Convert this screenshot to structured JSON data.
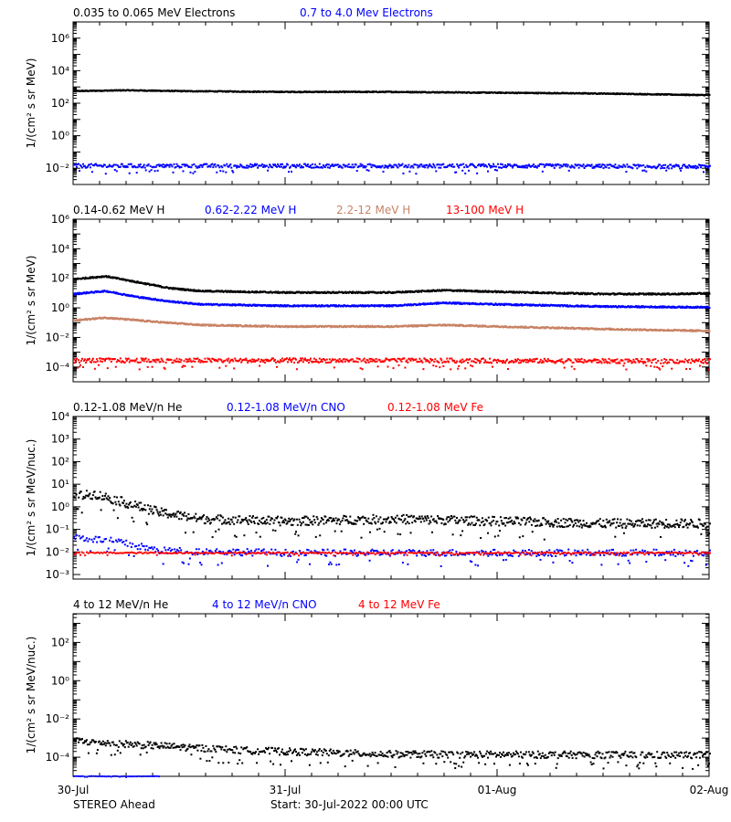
{
  "colors": {
    "black": "#000000",
    "blue": "#0000ff",
    "tan": "#c88264",
    "red": "#ff0000"
  },
  "footer": {
    "spacecraft": "STEREO Ahead",
    "start": "Start: 30-Jul-2022 00:00 UTC"
  },
  "x_axis": {
    "ticks": [
      "30-Jul",
      "31-Jul",
      "01-Aug",
      "02-Aug"
    ],
    "range_days": [
      0,
      3
    ]
  },
  "chart_data": [
    {
      "type": "scatter",
      "ylabel": "1/(cm² s sr MeV)",
      "yscale": "log",
      "ylim_exp": [
        -3,
        7
      ],
      "ytick_labels": [
        "10⁻²",
        "10⁰",
        "10²",
        "10⁴",
        "10⁶"
      ],
      "ytick_exps": [
        -2,
        0,
        2,
        4,
        6
      ],
      "legend": [
        {
          "label": "0.035 to 0.065 MeV Electrons",
          "color": "#000000"
        },
        {
          "label": "0.7 to 4.0 Mev Electrons",
          "color": "#0000ff"
        }
      ],
      "series": [
        {
          "name": "0.035 to 0.065 MeV Electrons",
          "color": "#000000",
          "points": [
            [
              0,
              2.8
            ],
            [
              0.25,
              2.85
            ],
            [
              0.5,
              2.8
            ],
            [
              1,
              2.75
            ],
            [
              1.5,
              2.75
            ],
            [
              2,
              2.7
            ],
            [
              2.5,
              2.65
            ],
            [
              3,
              2.55
            ]
          ],
          "spread": 0.03,
          "density": 1400,
          "mode": "line"
        },
        {
          "name": "0.7 to 4.0 Mev Electrons",
          "color": "#0000ff",
          "points": [
            [
              0,
              -1.8
            ],
            [
              1,
              -1.8
            ],
            [
              2,
              -1.8
            ],
            [
              3,
              -1.85
            ]
          ],
          "spread": 0.12,
          "density": 700,
          "mode": "dots"
        }
      ]
    },
    {
      "type": "scatter",
      "ylabel": "1/(cm² s sr MeV)",
      "yscale": "log",
      "ylim_exp": [
        -5,
        6
      ],
      "ytick_labels": [
        "10⁻⁴",
        "10⁻²",
        "10⁰",
        "10²",
        "10⁴",
        "10⁶"
      ],
      "ytick_exps": [
        -4,
        -2,
        0,
        2,
        4,
        6
      ],
      "legend": [
        {
          "label": "0.14-0.62 MeV H",
          "color": "#000000"
        },
        {
          "label": "0.62-2.22 MeV H",
          "color": "#0000ff"
        },
        {
          "label": "2.2-12 MeV H",
          "color": "#c88264"
        },
        {
          "label": "13-100 MeV H",
          "color": "#ff0000"
        }
      ],
      "series": [
        {
          "name": "0.14-0.62 MeV H",
          "color": "#000000",
          "points": [
            [
              0,
              2.0
            ],
            [
              0.15,
              2.2
            ],
            [
              0.3,
              1.8
            ],
            [
              0.45,
              1.4
            ],
            [
              0.6,
              1.2
            ],
            [
              1.0,
              1.1
            ],
            [
              1.5,
              1.1
            ],
            [
              1.75,
              1.25
            ],
            [
              2.0,
              1.15
            ],
            [
              2.5,
              1.0
            ],
            [
              2.85,
              1.0
            ],
            [
              3,
              1.05
            ]
          ],
          "spread": 0.05,
          "density": 1400,
          "mode": "line"
        },
        {
          "name": "0.62-2.22 MeV H",
          "color": "#0000ff",
          "points": [
            [
              0,
              1.0
            ],
            [
              0.15,
              1.2
            ],
            [
              0.3,
              0.8
            ],
            [
              0.45,
              0.5
            ],
            [
              0.6,
              0.3
            ],
            [
              1.0,
              0.2
            ],
            [
              1.5,
              0.2
            ],
            [
              1.75,
              0.4
            ],
            [
              2.0,
              0.3
            ],
            [
              2.5,
              0.15
            ],
            [
              3,
              0.1
            ]
          ],
          "spread": 0.05,
          "density": 1400,
          "mode": "line"
        },
        {
          "name": "2.2-12 MeV H",
          "color": "#c88264",
          "points": [
            [
              0,
              -0.8
            ],
            [
              0.15,
              -0.6
            ],
            [
              0.4,
              -0.9
            ],
            [
              0.6,
              -1.1
            ],
            [
              1.0,
              -1.2
            ],
            [
              1.5,
              -1.2
            ],
            [
              1.75,
              -1.1
            ],
            [
              2.0,
              -1.2
            ],
            [
              2.3,
              -1.3
            ],
            [
              2.6,
              -1.4
            ],
            [
              3,
              -1.5
            ]
          ],
          "spread": 0.05,
          "density": 1400,
          "mode": "line"
        },
        {
          "name": "13-100 MeV H",
          "color": "#ff0000",
          "points": [
            [
              0,
              -3.5
            ],
            [
              1.5,
              -3.5
            ],
            [
              3,
              -3.55
            ]
          ],
          "spread": 0.15,
          "density": 700,
          "mode": "dots"
        }
      ]
    },
    {
      "type": "scatter",
      "ylabel": "1/(cm² s sr MeV/nuc.)",
      "yscale": "log",
      "ylim_exp": [
        -3.2,
        4
      ],
      "ytick_labels": [
        "10⁻³",
        "10⁻²",
        "10⁻¹",
        "10⁰",
        "10¹",
        "10²",
        "10³",
        "10⁴"
      ],
      "ytick_exps": [
        -3,
        -2,
        -1,
        0,
        1,
        2,
        3,
        4
      ],
      "legend": [
        {
          "label": "0.12-1.08 MeV/n He",
          "color": "#000000"
        },
        {
          "label": "0.12-1.08 MeV/n CNO",
          "color": "#0000ff"
        },
        {
          "label": "0.12-1.08 MeV Fe",
          "color": "#ff0000"
        }
      ],
      "series": [
        {
          "name": "0.12-1.08 MeV/n He",
          "color": "#000000",
          "points": [
            [
              0,
              0.5
            ],
            [
              0.1,
              0.6
            ],
            [
              0.25,
              0.2
            ],
            [
              0.4,
              -0.2
            ],
            [
              0.6,
              -0.5
            ],
            [
              1.0,
              -0.6
            ],
            [
              1.5,
              -0.5
            ],
            [
              2.0,
              -0.6
            ],
            [
              2.5,
              -0.7
            ],
            [
              3,
              -0.7
            ]
          ],
          "spread": 0.2,
          "density": 800,
          "mode": "dots"
        },
        {
          "name": "0.12-1.08 MeV/n CNO",
          "color": "#0000ff",
          "points": [
            [
              0,
              -1.3
            ],
            [
              0.2,
              -1.5
            ],
            [
              0.4,
              -1.9
            ],
            [
              1.0,
              -2.0
            ],
            [
              3,
              -2.0
            ]
          ],
          "spread": 0.15,
          "density": 500,
          "mode": "dots"
        },
        {
          "name": "0.12-1.08 MeV Fe",
          "color": "#ff0000",
          "points": [
            [
              0,
              -2.0
            ],
            [
              3,
              -2.0
            ]
          ],
          "spread": 0.03,
          "density": 400,
          "mode": "dots"
        }
      ]
    },
    {
      "type": "scatter",
      "ylabel": "1/(cm² s sr MeV/nuc.)",
      "yscale": "log",
      "ylim_exp": [
        -5,
        3.5
      ],
      "ytick_labels": [
        "10⁻⁴",
        "10⁻²",
        "10⁰",
        "10²"
      ],
      "ytick_exps": [
        -4,
        -2,
        0,
        2
      ],
      "legend": [
        {
          "label": "4 to 12 MeV/n He",
          "color": "#000000"
        },
        {
          "label": "4 to 12 MeV/n CNO",
          "color": "#0000ff"
        },
        {
          "label": "4 to 12 MeV Fe",
          "color": "#ff0000"
        }
      ],
      "series": [
        {
          "name": "4 to 12 MeV/n He",
          "color": "#000000",
          "points": [
            [
              0,
              -3.1
            ],
            [
              0.3,
              -3.3
            ],
            [
              0.8,
              -3.6
            ],
            [
              1.5,
              -3.8
            ],
            [
              3,
              -3.85
            ]
          ],
          "spread": 0.18,
          "density": 700,
          "mode": "dots"
        },
        {
          "name": "4 to 12 MeV/n CNO",
          "color": "#0000ff",
          "points": [
            [
              0,
              -4.95
            ],
            [
              0.4,
              -4.95
            ]
          ],
          "spread": 0.01,
          "density": 40,
          "mode": "dots"
        }
      ]
    }
  ]
}
